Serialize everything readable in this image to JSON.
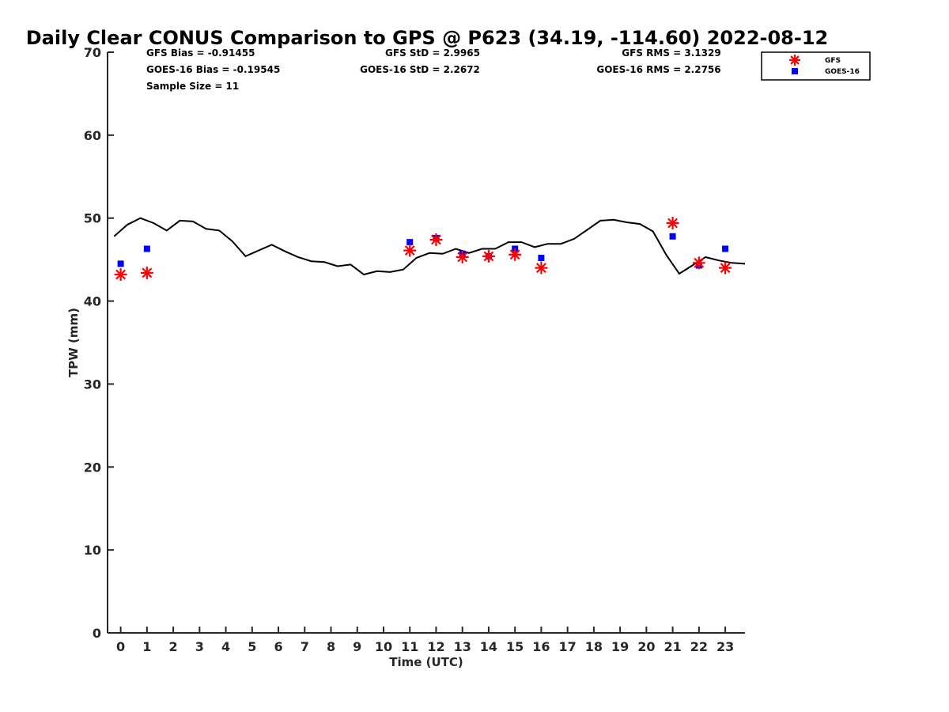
{
  "chart_data": {
    "type": "scatter",
    "title": "Daily Clear CONUS Comparison to GPS @ P623 (34.19, -114.60) 2022-08-12",
    "xlabel": "Time (UTC)",
    "ylabel": "TPW (mm)",
    "xlim": [
      -0.5,
      23.75
    ],
    "ylim": [
      0,
      70
    ],
    "x_ticks": [
      "0",
      "1",
      "2",
      "3",
      "4",
      "5",
      "6",
      "7",
      "8",
      "9",
      "10",
      "11",
      "12",
      "13",
      "14",
      "15",
      "16",
      "17",
      "18",
      "19",
      "20",
      "21",
      "22",
      "23"
    ],
    "y_ticks": [
      "0",
      "10",
      "20",
      "30",
      "40",
      "50",
      "60",
      "70"
    ],
    "grid": false,
    "legend_position": "top-right",
    "stats": {
      "gfs_bias": "GFS Bias = -0.91455",
      "goes_bias": "GOES-16 Bias = -0.19545",
      "sample_size": "Sample Size = 11",
      "gfs_std": "GFS StD = 2.9965",
      "goes_std": "GOES-16 StD = 2.2672",
      "gfs_rms": "GFS RMS = 3.1329",
      "goes_rms": "GOES-16 RMS = 2.2756"
    },
    "series": [
      {
        "name": "GFS",
        "marker": "asterisk",
        "color": "#ff0000",
        "x": [
          0,
          1,
          11,
          12,
          13,
          14,
          15,
          16,
          21,
          22,
          23
        ],
        "y": [
          43.2,
          43.4,
          46.1,
          47.4,
          45.3,
          45.4,
          45.6,
          44.0,
          49.4,
          44.6,
          44.0
        ]
      },
      {
        "name": "GOES-16",
        "marker": "square",
        "color": "#0000ff",
        "x": [
          0,
          1,
          11,
          12,
          13,
          14,
          15,
          16,
          21,
          22,
          23
        ],
        "y": [
          44.5,
          46.3,
          47.1,
          47.6,
          45.7,
          45.4,
          46.3,
          45.2,
          47.8,
          44.3,
          46.3
        ]
      },
      {
        "marker": "line",
        "color": "#000000",
        "x": [
          -0.25,
          0.25,
          0.75,
          1.25,
          1.75,
          2.25,
          2.75,
          3.25,
          3.75,
          4.25,
          4.75,
          5.25,
          5.75,
          6.25,
          6.75,
          7.25,
          7.75,
          8.25,
          8.75,
          9.25,
          9.75,
          10.25,
          10.75,
          11.25,
          11.75,
          12.25,
          12.75,
          13.25,
          13.75,
          14.25,
          14.75,
          15.25,
          15.75,
          16.25,
          16.75,
          17.25,
          17.75,
          18.25,
          18.75,
          19.25,
          19.75,
          20.25,
          20.75,
          21.25,
          21.75,
          22.25,
          22.75,
          23.25,
          23.75
        ],
        "y": [
          47.8,
          49.2,
          50.0,
          49.4,
          48.5,
          49.7,
          49.6,
          48.7,
          48.5,
          47.2,
          45.4,
          46.1,
          46.8,
          46.0,
          45.3,
          44.8,
          44.7,
          44.2,
          44.4,
          43.2,
          43.6,
          43.5,
          43.8,
          45.2,
          45.8,
          45.7,
          46.3,
          45.8,
          46.3,
          46.3,
          47.1,
          47.1,
          46.5,
          46.9,
          46.9,
          47.5,
          48.6,
          49.7,
          49.8,
          49.5,
          49.3,
          48.4,
          45.6,
          43.3,
          44.3,
          45.3,
          44.9,
          44.6,
          44.5
        ]
      }
    ]
  }
}
